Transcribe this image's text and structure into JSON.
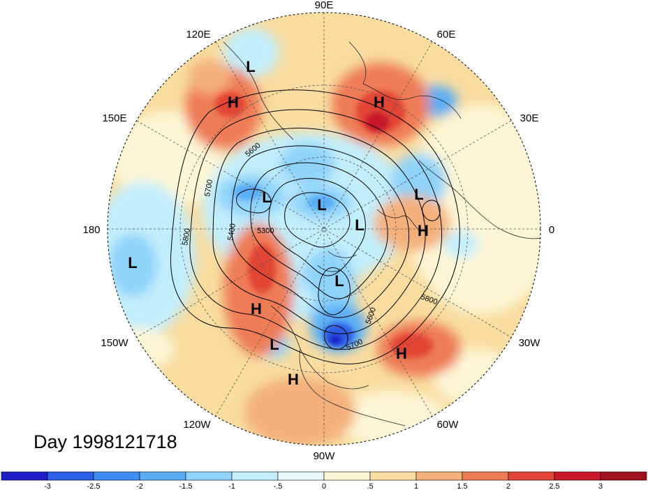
{
  "map": {
    "projection": "north-polar-stereographic",
    "title": "Day 1998121718",
    "longitude_labels": [
      "90E",
      "60E",
      "30E",
      "0",
      "30W",
      "60W",
      "90W",
      "120W",
      "150W",
      "180",
      "150E",
      "120E"
    ],
    "contour_labels": [
      "5600",
      "5700",
      "5400",
      "5300",
      "5800",
      "5800",
      "5600",
      "5700"
    ],
    "highs_lows": [
      {
        "type": "L",
        "region": "north-siberia"
      },
      {
        "type": "H",
        "region": "east-siberia"
      },
      {
        "type": "H",
        "region": "ural"
      },
      {
        "type": "L",
        "region": "kamchatka"
      },
      {
        "type": "L",
        "region": "pole"
      },
      {
        "type": "L",
        "region": "scandinavia"
      },
      {
        "type": "H",
        "region": "iceland-sea"
      },
      {
        "type": "L",
        "region": "greenland"
      },
      {
        "type": "L",
        "region": "north-pacific"
      },
      {
        "type": "L",
        "region": "hudson-bay"
      },
      {
        "type": "H",
        "region": "alaska"
      },
      {
        "type": "L",
        "region": "east-pacific"
      },
      {
        "type": "H",
        "region": "north-atlantic"
      },
      {
        "type": "H",
        "region": "mexico"
      }
    ]
  },
  "colorbar": {
    "ticks": [
      "-3",
      "-2.5",
      "-2",
      "-1.5",
      "-1",
      "-.5",
      "0",
      ".5",
      "1",
      "1.5",
      "2",
      "2.5",
      "3"
    ],
    "colors": [
      "#1e1ec8",
      "#2d5fe6",
      "#3f8cf2",
      "#5aadf5",
      "#8fd3fa",
      "#c2eefc",
      "#e8f9fd",
      "#fdf6d6",
      "#f8dca0",
      "#f4b07c",
      "#ee7b56",
      "#e34536",
      "#c8182a",
      "#a0101e"
    ]
  }
}
